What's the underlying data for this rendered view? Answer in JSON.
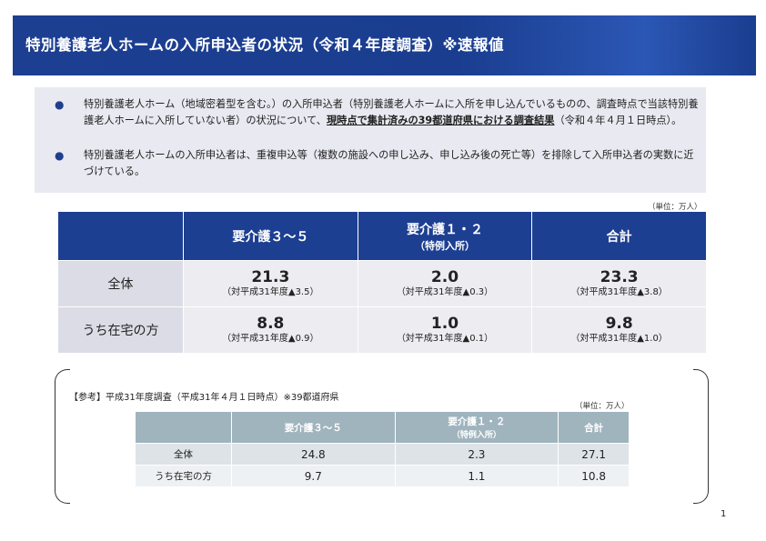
{
  "title": "特別養護老人ホームの入所申込者の状況（令和４年度調査）※速報値",
  "bullets": [
    {
      "text_before": "特別養護老人ホーム（地域密着型を含む。）の入所申込者（特別養護老人ホームに入所を申し込んでいるものの、調査時点で当該特別養護老人ホームに入所していない者）の状況について、",
      "bold": "現時点で集計済みの39都道府県における調査結果",
      "text_after": "（令和４年４月１日時点）。"
    },
    {
      "text": "特別養護老人ホームの入所申込者は、重複申込等（複数の施設への申し込み、申し込み後の死亡等）を排除して入所申込者の実数に近づけている。"
    }
  ],
  "main_table": {
    "unit": "（単位：万人）",
    "headers": [
      "要介護３～５",
      "要介護１・２",
      "（特例入所）",
      "合計"
    ],
    "rows": [
      {
        "label": "全体",
        "cells": [
          {
            "value": "21.3",
            "compare": "（対平成31年度▲3.5）"
          },
          {
            "value": "2.0",
            "compare": "（対平成31年度▲0.3）"
          },
          {
            "value": "23.3",
            "compare": "（対平成31年度▲3.8）"
          }
        ]
      },
      {
        "label": "うち在宅の方",
        "cells": [
          {
            "value": "8.8",
            "compare": "（対平成31年度▲0.9）"
          },
          {
            "value": "1.0",
            "compare": "（対平成31年度▲0.1）"
          },
          {
            "value": "9.8",
            "compare": "（対平成31年度▲1.0）"
          }
        ]
      }
    ]
  },
  "reference": {
    "title": "【参考】平成31年度調査（平成31年４月１日時点）※39都道府県",
    "unit": "（単位：万人）",
    "headers": [
      "要介護３～５",
      "要介護１・２",
      "（特例入所）",
      "合計"
    ],
    "rows": [
      {
        "label": "全体",
        "values": [
          "24.8",
          "2.3",
          "27.1"
        ]
      },
      {
        "label": "うち在宅の方",
        "values": [
          "9.7",
          "1.1",
          "10.8"
        ]
      }
    ]
  },
  "page_number": "1",
  "colors": {
    "header_blue": "#1d3f92",
    "bullet_box": "#e9e9f1",
    "ref_header": "#a0b4be"
  }
}
